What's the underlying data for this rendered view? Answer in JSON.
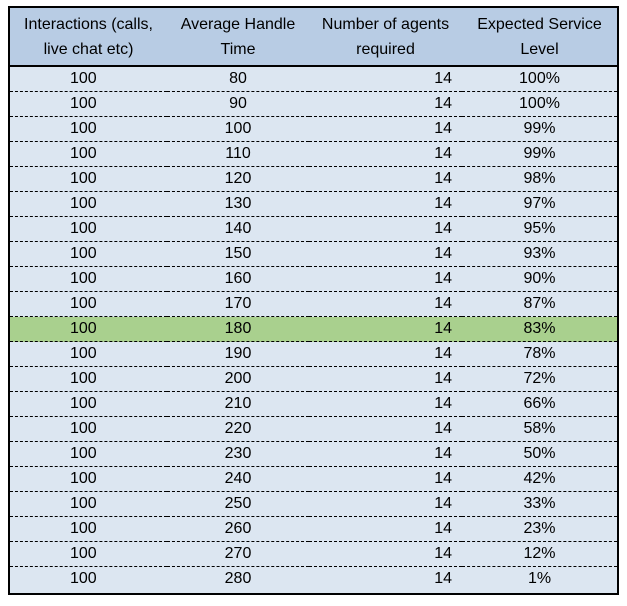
{
  "table": {
    "headers": [
      "Interactions (calls, live chat etc)",
      "Average Handle Time",
      "Number of agents required",
      "Expected Service Level"
    ],
    "rows": [
      [
        "100",
        "80",
        "14",
        "100%"
      ],
      [
        "100",
        "90",
        "14",
        "100%"
      ],
      [
        "100",
        "100",
        "14",
        "99%"
      ],
      [
        "100",
        "110",
        "14",
        "99%"
      ],
      [
        "100",
        "120",
        "14",
        "98%"
      ],
      [
        "100",
        "130",
        "14",
        "97%"
      ],
      [
        "100",
        "140",
        "14",
        "95%"
      ],
      [
        "100",
        "150",
        "14",
        "93%"
      ],
      [
        "100",
        "160",
        "14",
        "90%"
      ],
      [
        "100",
        "170",
        "14",
        "87%"
      ],
      [
        "100",
        "180",
        "14",
        "83%"
      ],
      [
        "100",
        "190",
        "14",
        "78%"
      ],
      [
        "100",
        "200",
        "14",
        "72%"
      ],
      [
        "100",
        "210",
        "14",
        "66%"
      ],
      [
        "100",
        "220",
        "14",
        "58%"
      ],
      [
        "100",
        "230",
        "14",
        "50%"
      ],
      [
        "100",
        "240",
        "14",
        "42%"
      ],
      [
        "100",
        "250",
        "14",
        "33%"
      ],
      [
        "100",
        "260",
        "14",
        "23%"
      ],
      [
        "100",
        "270",
        "14",
        "12%"
      ],
      [
        "100",
        "280",
        "14",
        "1%"
      ]
    ],
    "highlighted_row_index": 10
  },
  "colors": {
    "header_background": "#b8cce4",
    "row_background": "#dce6f1",
    "highlight_background": "#a9d08e",
    "border": "#000000"
  }
}
